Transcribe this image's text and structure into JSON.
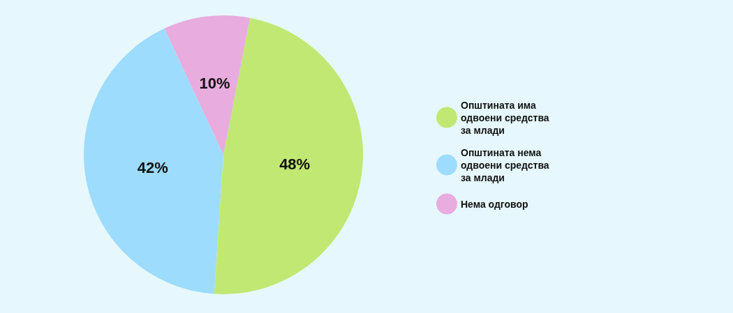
{
  "chart_data": {
    "type": "pie",
    "categories": [
      "Општината има одвоени средства за млади",
      "Општината нема одвоени средства за млади",
      "Нема одговор"
    ],
    "values": [
      48,
      42,
      10
    ],
    "colors": [
      "#c1e872",
      "#9ddcfd",
      "#e8acdf"
    ],
    "value_labels": [
      "48%",
      "42%",
      "10%"
    ],
    "legend": "right"
  }
}
